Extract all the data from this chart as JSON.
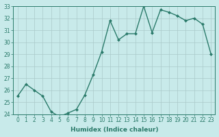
{
  "x": [
    0,
    1,
    2,
    3,
    4,
    5,
    6,
    7,
    8,
    9,
    10,
    11,
    12,
    13,
    14,
    15,
    16,
    17,
    18,
    19,
    20,
    21,
    22,
    23
  ],
  "y": [
    25.5,
    26.5,
    26.0,
    25.5,
    24.2,
    23.8,
    24.1,
    24.4,
    25.6,
    27.3,
    29.2,
    31.8,
    30.2,
    30.7,
    30.7,
    33.0,
    30.8,
    32.7,
    32.5,
    32.2,
    31.8,
    32.0,
    31.5,
    29.0
  ],
  "line_color": "#2a7a6a",
  "marker": "D",
  "marker_size": 2.0,
  "bg_color": "#c8eaea",
  "grid_color": "#aacaca",
  "xlabel": "Humidex (Indice chaleur)",
  "ylabel": "",
  "xlim": [
    -0.5,
    23.5
  ],
  "ylim": [
    24,
    33
  ],
  "yticks": [
    24,
    25,
    26,
    27,
    28,
    29,
    30,
    31,
    32,
    33
  ],
  "xticks": [
    0,
    1,
    2,
    3,
    4,
    5,
    6,
    7,
    8,
    9,
    10,
    11,
    12,
    13,
    14,
    15,
    16,
    17,
    18,
    19,
    20,
    21,
    22,
    23
  ],
  "tick_fontsize": 5.5,
  "xlabel_fontsize": 6.5,
  "line_width": 1.0,
  "title_color": "#2a7a6a"
}
